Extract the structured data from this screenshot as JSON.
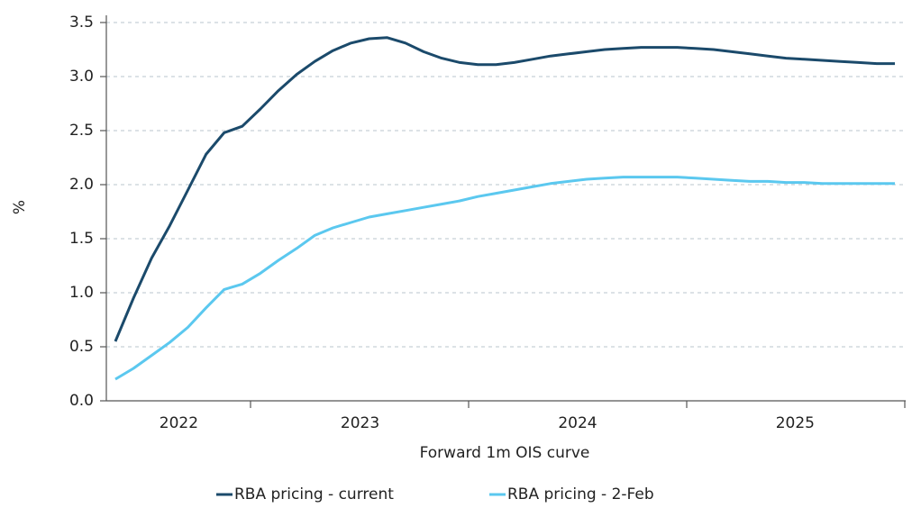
{
  "chart_data": {
    "type": "line",
    "xlabel": "Forward 1m OIS curve",
    "ylabel": "%",
    "categories": [
      null,
      null,
      null,
      "2022",
      null,
      null,
      null,
      null,
      null,
      null,
      null,
      null,
      null,
      "2023",
      null,
      null,
      null,
      null,
      null,
      null,
      null,
      null,
      null,
      null,
      null,
      "2024",
      null,
      null,
      null,
      null,
      null,
      null,
      null,
      null,
      null,
      null,
      null,
      "2025",
      null,
      null,
      null,
      null,
      null,
      null
    ],
    "series": [
      {
        "name": "RBA pricing - current",
        "color": "#1b4a6b",
        "values": [
          0.55,
          0.95,
          1.32,
          1.62,
          1.95,
          2.28,
          2.48,
          2.54,
          2.7,
          2.87,
          3.02,
          3.14,
          3.24,
          3.31,
          3.35,
          3.36,
          3.31,
          3.23,
          3.17,
          3.13,
          3.11,
          3.11,
          3.13,
          3.16,
          3.19,
          3.21,
          3.23,
          3.25,
          3.26,
          3.27,
          3.27,
          3.27,
          3.26,
          3.25,
          3.23,
          3.21,
          3.19,
          3.17,
          3.16,
          3.15,
          3.14,
          3.13,
          3.12,
          3.12
        ]
      },
      {
        "name": "RBA pricing - 2-Feb",
        "color": "#5bc8ef",
        "values": [
          0.2,
          0.3,
          0.42,
          0.54,
          0.68,
          0.86,
          1.03,
          1.08,
          1.18,
          1.3,
          1.41,
          1.53,
          1.6,
          1.65,
          1.7,
          1.73,
          1.76,
          1.79,
          1.82,
          1.85,
          1.89,
          1.92,
          1.95,
          1.98,
          2.01,
          2.03,
          2.05,
          2.06,
          2.07,
          2.07,
          2.07,
          2.07,
          2.06,
          2.05,
          2.04,
          2.03,
          2.03,
          2.02,
          2.02,
          2.01,
          2.01,
          2.01,
          2.01,
          2.01
        ]
      }
    ],
    "ylim": [
      0,
      3.5
    ],
    "yticks": [
      {
        "value": 0,
        "label": "0.0"
      },
      {
        "value": 0.5,
        "label": "0.5"
      },
      {
        "value": 1,
        "label": "1.0"
      },
      {
        "value": 1.5,
        "label": "1.5"
      },
      {
        "value": 2,
        "label": "2.0"
      },
      {
        "value": 2.5,
        "label": "2.5"
      },
      {
        "value": 3,
        "label": "3.0"
      },
      {
        "value": 3.5,
        "label": "3.5"
      }
    ],
    "grid": true
  }
}
